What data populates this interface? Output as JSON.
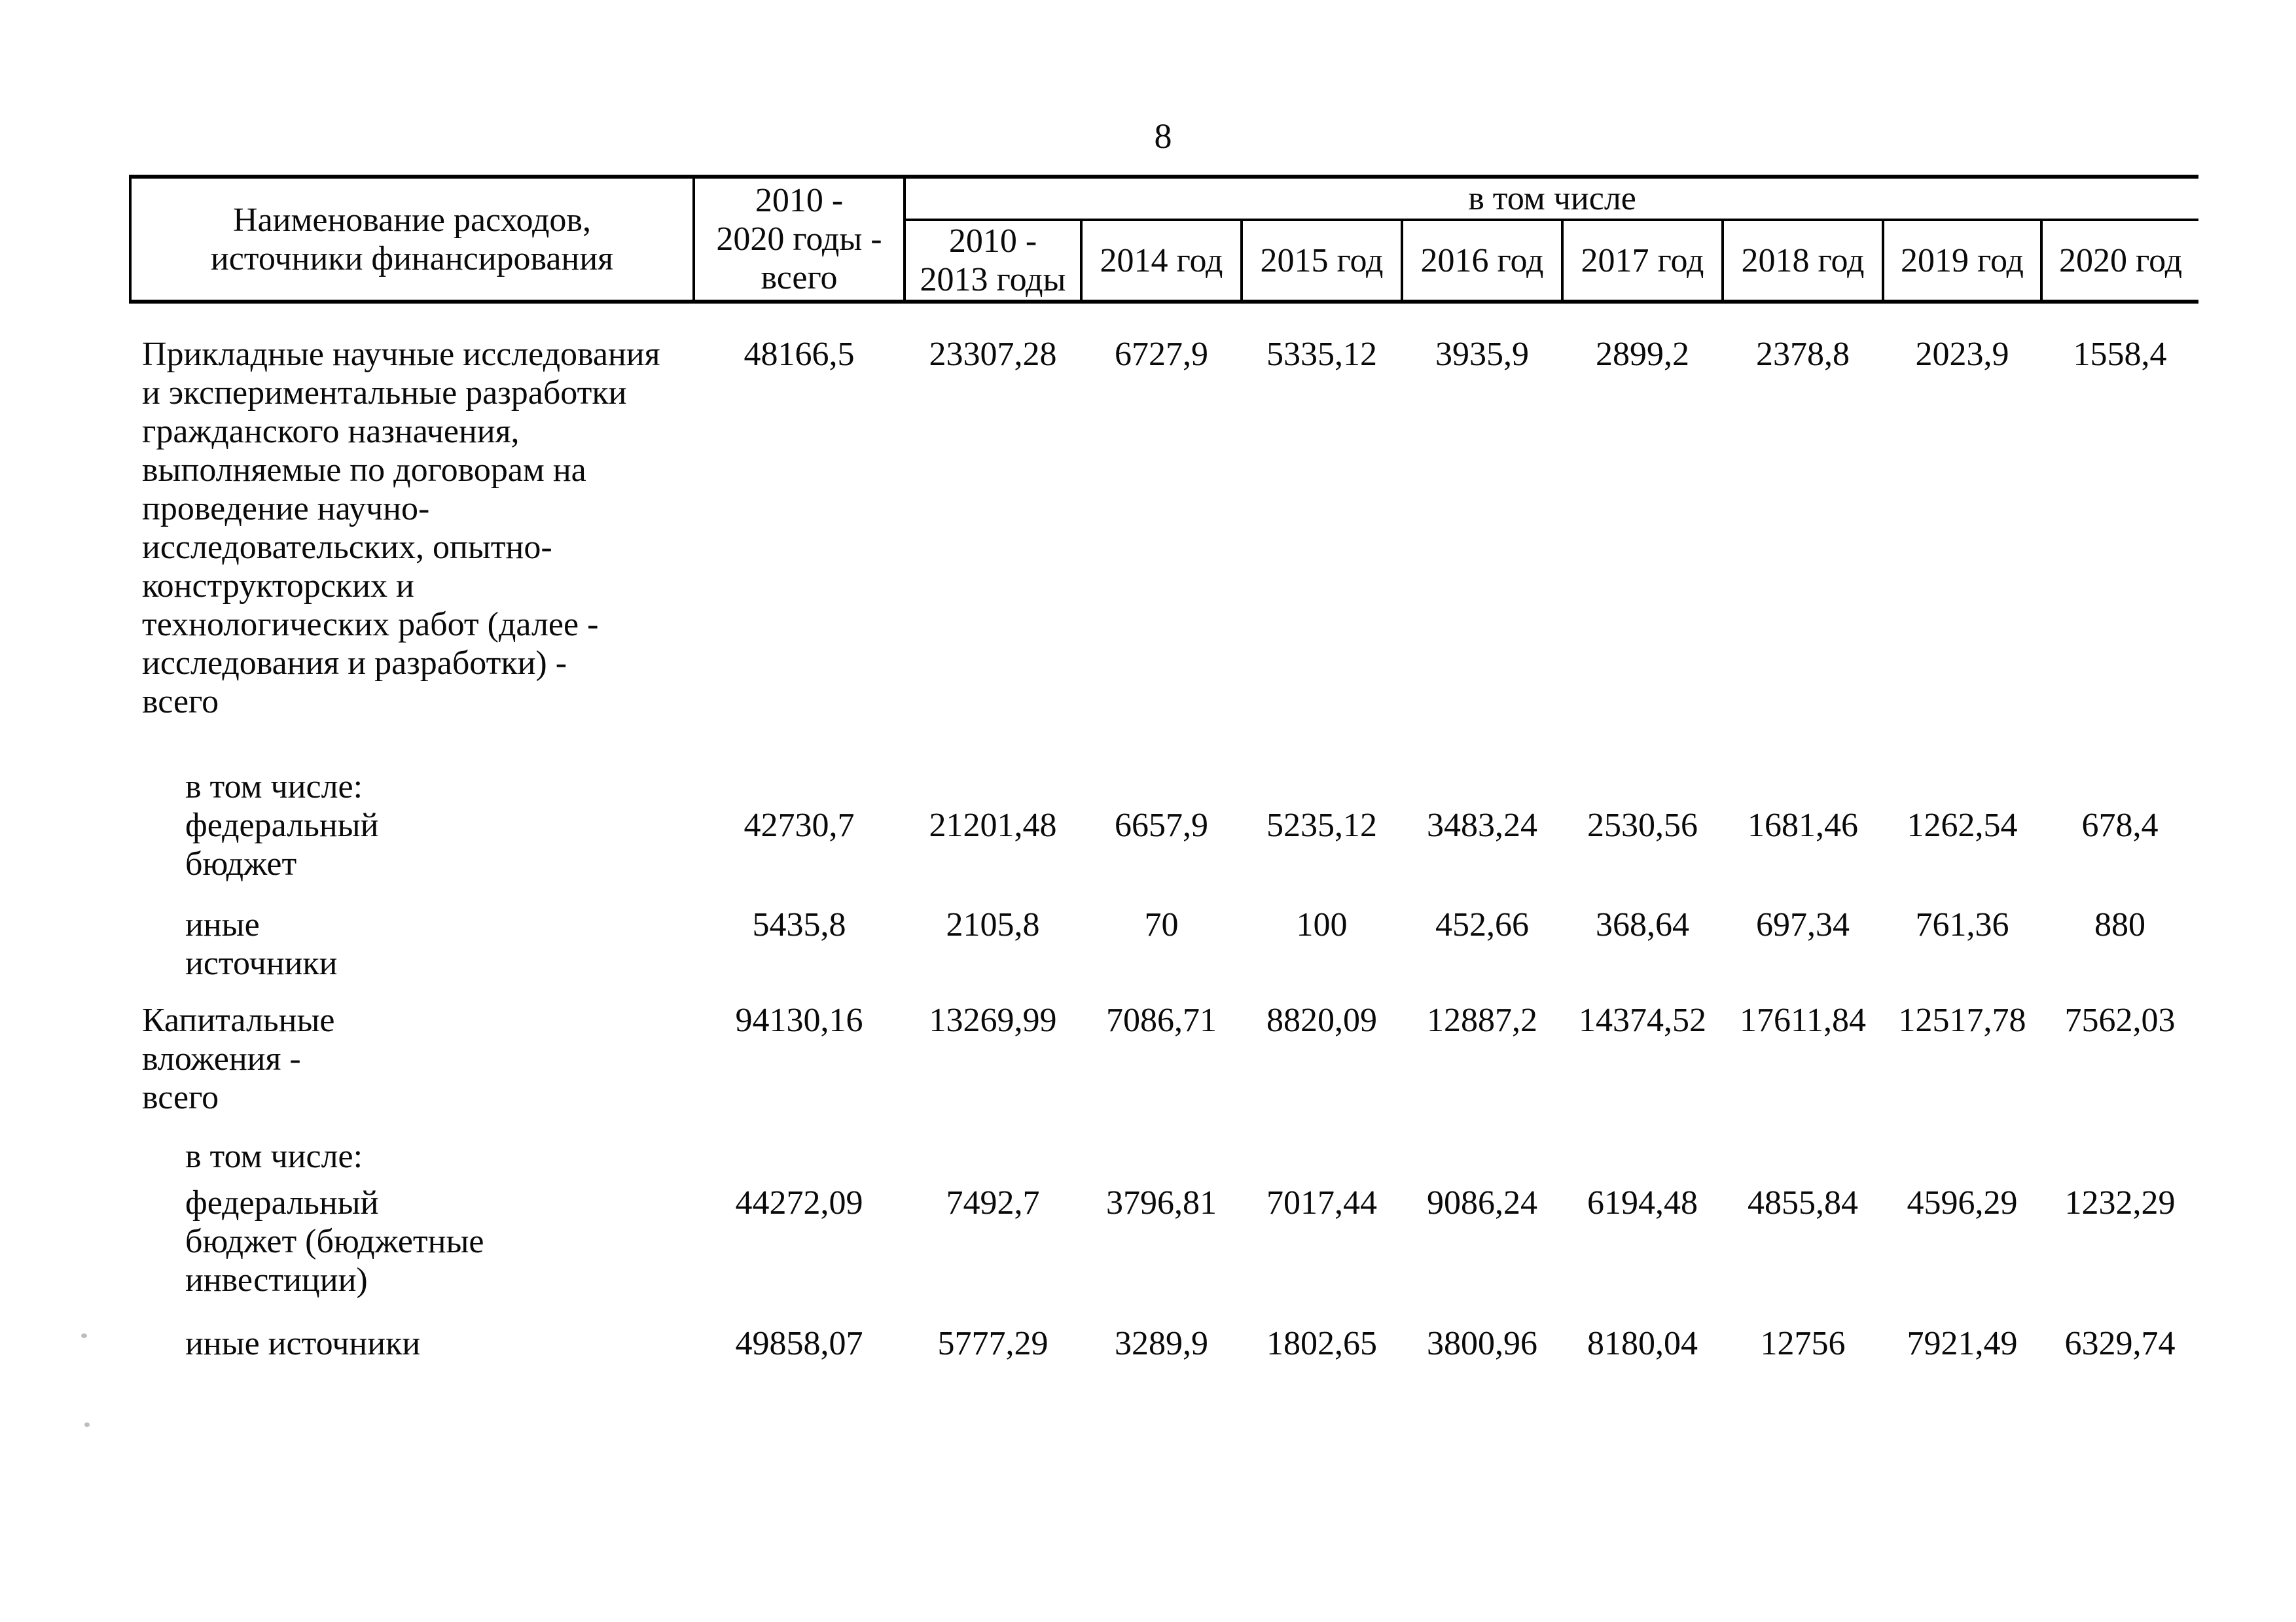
{
  "page": {
    "number": "8"
  },
  "table": {
    "header": {
      "col_name": "Наименование расходов,\nисточники финансирования",
      "col_total": "2010 -\n2020 годы -\nвсего",
      "including": "в том числе",
      "year_cols": [
        "2010 -\n2013 годы",
        "2014 год",
        "2015 год",
        "2016 год",
        "2017 год",
        "2018 год",
        "2019 год",
        "2020 год"
      ]
    },
    "rows": [
      {
        "label": "Прикладные научные исследования\nи экспериментальные разработки\nгражданского назначения,\nвыполняемые по договорам на\nпроведение научно-\nисследовательских, опытно-\nконструкторских и\nтехнологических работ (далее -\nисследования и разработки) -\nвсего",
        "indent": false,
        "values": [
          "48166,5",
          "23307,28",
          "6727,9",
          "5335,12",
          "3935,9",
          "2899,2",
          "2378,8",
          "2023,9",
          "1558,4"
        ]
      },
      {
        "label": "в том числе:",
        "indent": true,
        "values": []
      },
      {
        "label": "федеральный\nбюджет",
        "indent": true,
        "values": [
          "42730,7",
          "21201,48",
          "6657,9",
          "5235,12",
          "3483,24",
          "2530,56",
          "1681,46",
          "1262,54",
          "678,4"
        ]
      },
      {
        "label": "иные\nисточники",
        "indent": true,
        "values": [
          "5435,8",
          "2105,8",
          "70",
          "100",
          "452,66",
          "368,64",
          "697,34",
          "761,36",
          "880"
        ]
      },
      {
        "label": "Капитальные\nвложения -\nвсего",
        "indent": false,
        "values": [
          "94130,16",
          "13269,99",
          "7086,71",
          "8820,09",
          "12887,2",
          "14374,52",
          "17611,84",
          "12517,78",
          "7562,03"
        ]
      },
      {
        "label": "в том числе:",
        "indent": true,
        "values": []
      },
      {
        "label": "федеральный\nбюджет (бюджетные\nинвестиции)",
        "indent": true,
        "values": [
          "44272,09",
          "7492,7",
          "3796,81",
          "7017,44",
          "9086,24",
          "6194,48",
          "4855,84",
          "4596,29",
          "1232,29"
        ]
      },
      {
        "label": "иные источники",
        "indent": true,
        "values": [
          "49858,07",
          "5777,29",
          "3289,9",
          "1802,65",
          "3800,96",
          "8180,04",
          "12756",
          "7921,49",
          "6329,74"
        ]
      }
    ]
  }
}
